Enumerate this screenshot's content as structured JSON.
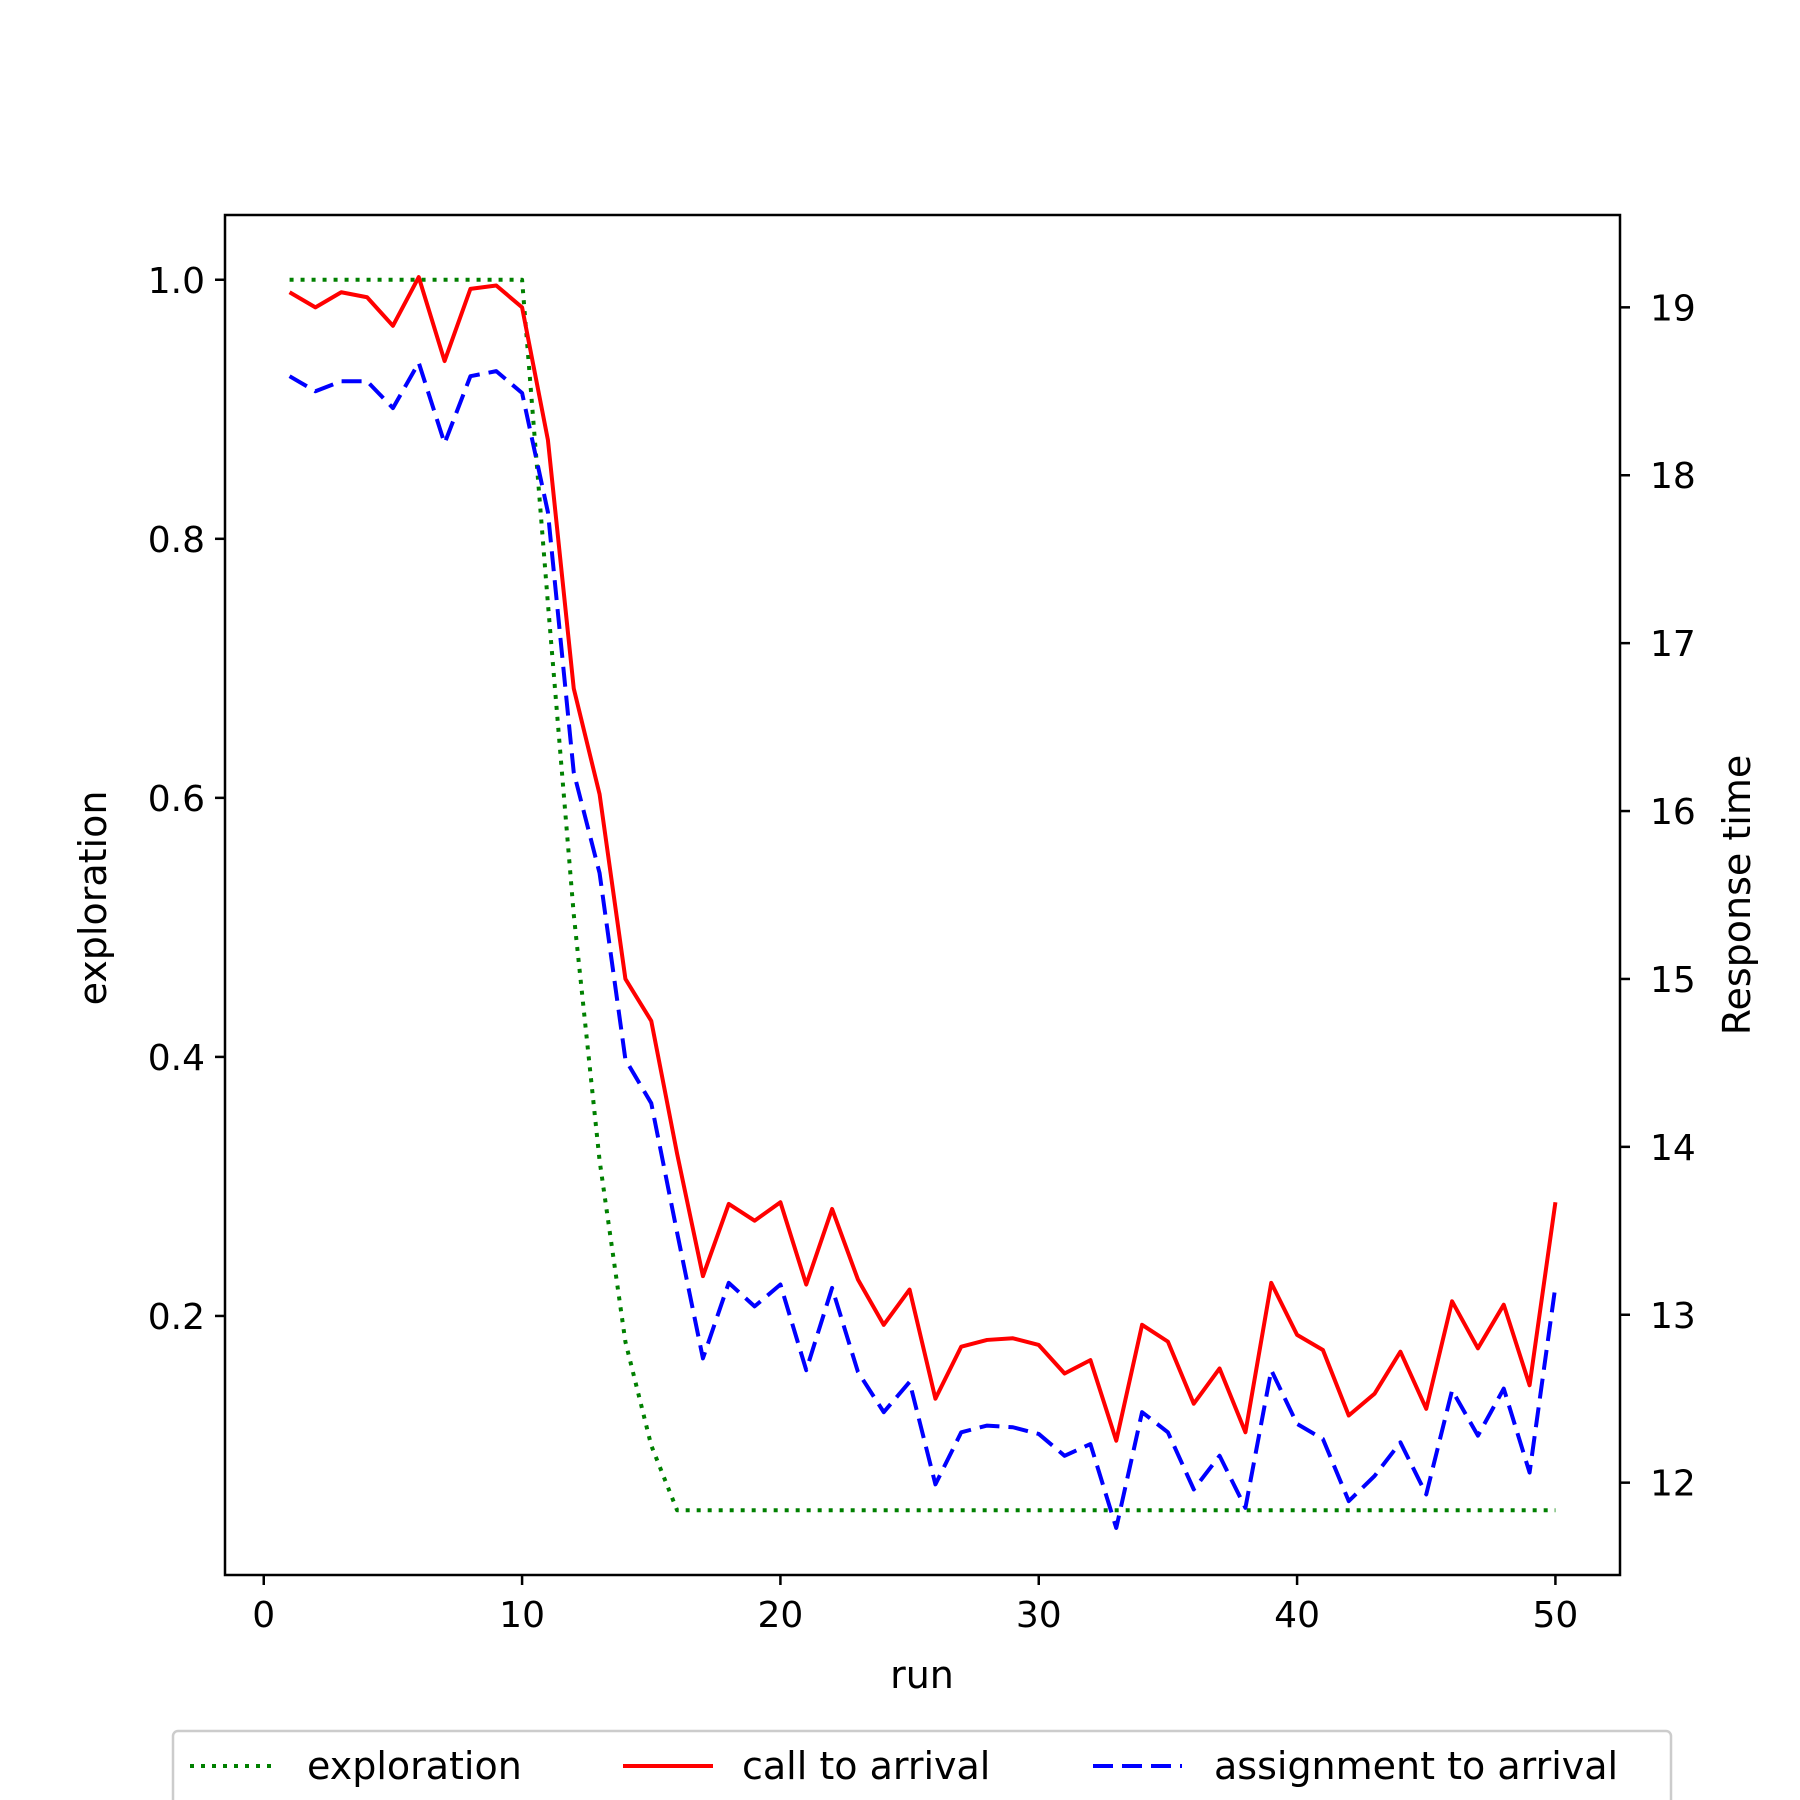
{
  "chart_data": {
    "type": "line",
    "title": "",
    "xlabel": "run",
    "ylabel_left": "exploration",
    "ylabel_right": "Response time",
    "xlim": [
      -1.5,
      52.5
    ],
    "ylim_left": [
      0.0,
      1.05
    ],
    "ylim_right": [
      11.45,
      19.55
    ],
    "x_ticks": [
      0,
      10,
      20,
      30,
      40,
      50
    ],
    "y_ticks_left": [
      0.2,
      0.4,
      0.6,
      0.8,
      1.0
    ],
    "y_ticks_right": [
      12,
      13,
      14,
      15,
      16,
      17,
      18,
      19
    ],
    "grid": false,
    "legend_position": "bottom-center",
    "x": [
      1,
      2,
      3,
      4,
      5,
      6,
      7,
      8,
      9,
      10,
      11,
      12,
      13,
      14,
      15,
      16,
      17,
      18,
      19,
      20,
      21,
      22,
      23,
      24,
      25,
      26,
      27,
      28,
      29,
      30,
      31,
      32,
      33,
      34,
      35,
      36,
      37,
      38,
      39,
      40,
      41,
      42,
      43,
      44,
      45,
      46,
      47,
      48,
      49,
      50
    ],
    "series": [
      {
        "name": "exploration",
        "axis": "left",
        "color": "#008000",
        "style": "dotted",
        "values": [
          1.0,
          1.0,
          1.0,
          1.0,
          1.0,
          1.0,
          1.0,
          1.0,
          1.0,
          1.0,
          0.75,
          0.51,
          0.32,
          0.18,
          0.1,
          0.05,
          0.05,
          0.05,
          0.05,
          0.05,
          0.05,
          0.05,
          0.05,
          0.05,
          0.05,
          0.05,
          0.05,
          0.05,
          0.05,
          0.05,
          0.05,
          0.05,
          0.05,
          0.05,
          0.05,
          0.05,
          0.05,
          0.05,
          0.05,
          0.05,
          0.05,
          0.05,
          0.05,
          0.05,
          0.05,
          0.05,
          0.05,
          0.05,
          0.05,
          0.05
        ]
      },
      {
        "name": "call to arrival",
        "axis": "right",
        "color": "#ff0000",
        "style": "solid",
        "values": [
          19.09,
          19.0,
          19.09,
          19.06,
          18.89,
          19.18,
          18.68,
          19.11,
          19.13,
          19.0,
          18.21,
          16.73,
          16.1,
          15.0,
          14.75,
          13.96,
          13.23,
          13.66,
          13.56,
          13.67,
          13.18,
          13.63,
          13.21,
          12.94,
          13.15,
          12.5,
          12.81,
          12.85,
          12.86,
          12.82,
          12.65,
          12.73,
          12.25,
          12.94,
          12.84,
          12.47,
          12.68,
          12.3,
          13.19,
          12.88,
          12.79,
          12.4,
          12.53,
          12.78,
          12.44,
          13.08,
          12.8,
          13.06,
          12.58,
          13.67
        ]
      },
      {
        "name": "assignment to arrival",
        "axis": "right",
        "color": "#0000ff",
        "style": "dashed",
        "values": [
          18.59,
          18.5,
          18.56,
          18.56,
          18.4,
          18.67,
          18.19,
          18.59,
          18.62,
          18.49,
          17.78,
          16.23,
          15.63,
          14.52,
          14.26,
          13.49,
          12.74,
          13.19,
          13.05,
          13.18,
          12.67,
          13.16,
          12.66,
          12.42,
          12.6,
          11.99,
          12.3,
          12.34,
          12.33,
          12.29,
          12.16,
          12.23,
          11.73,
          12.42,
          12.3,
          11.96,
          12.16,
          11.85,
          12.67,
          12.35,
          12.26,
          11.89,
          12.04,
          12.24,
          11.93,
          12.55,
          12.28,
          12.56,
          12.06,
          13.17
        ]
      }
    ]
  }
}
